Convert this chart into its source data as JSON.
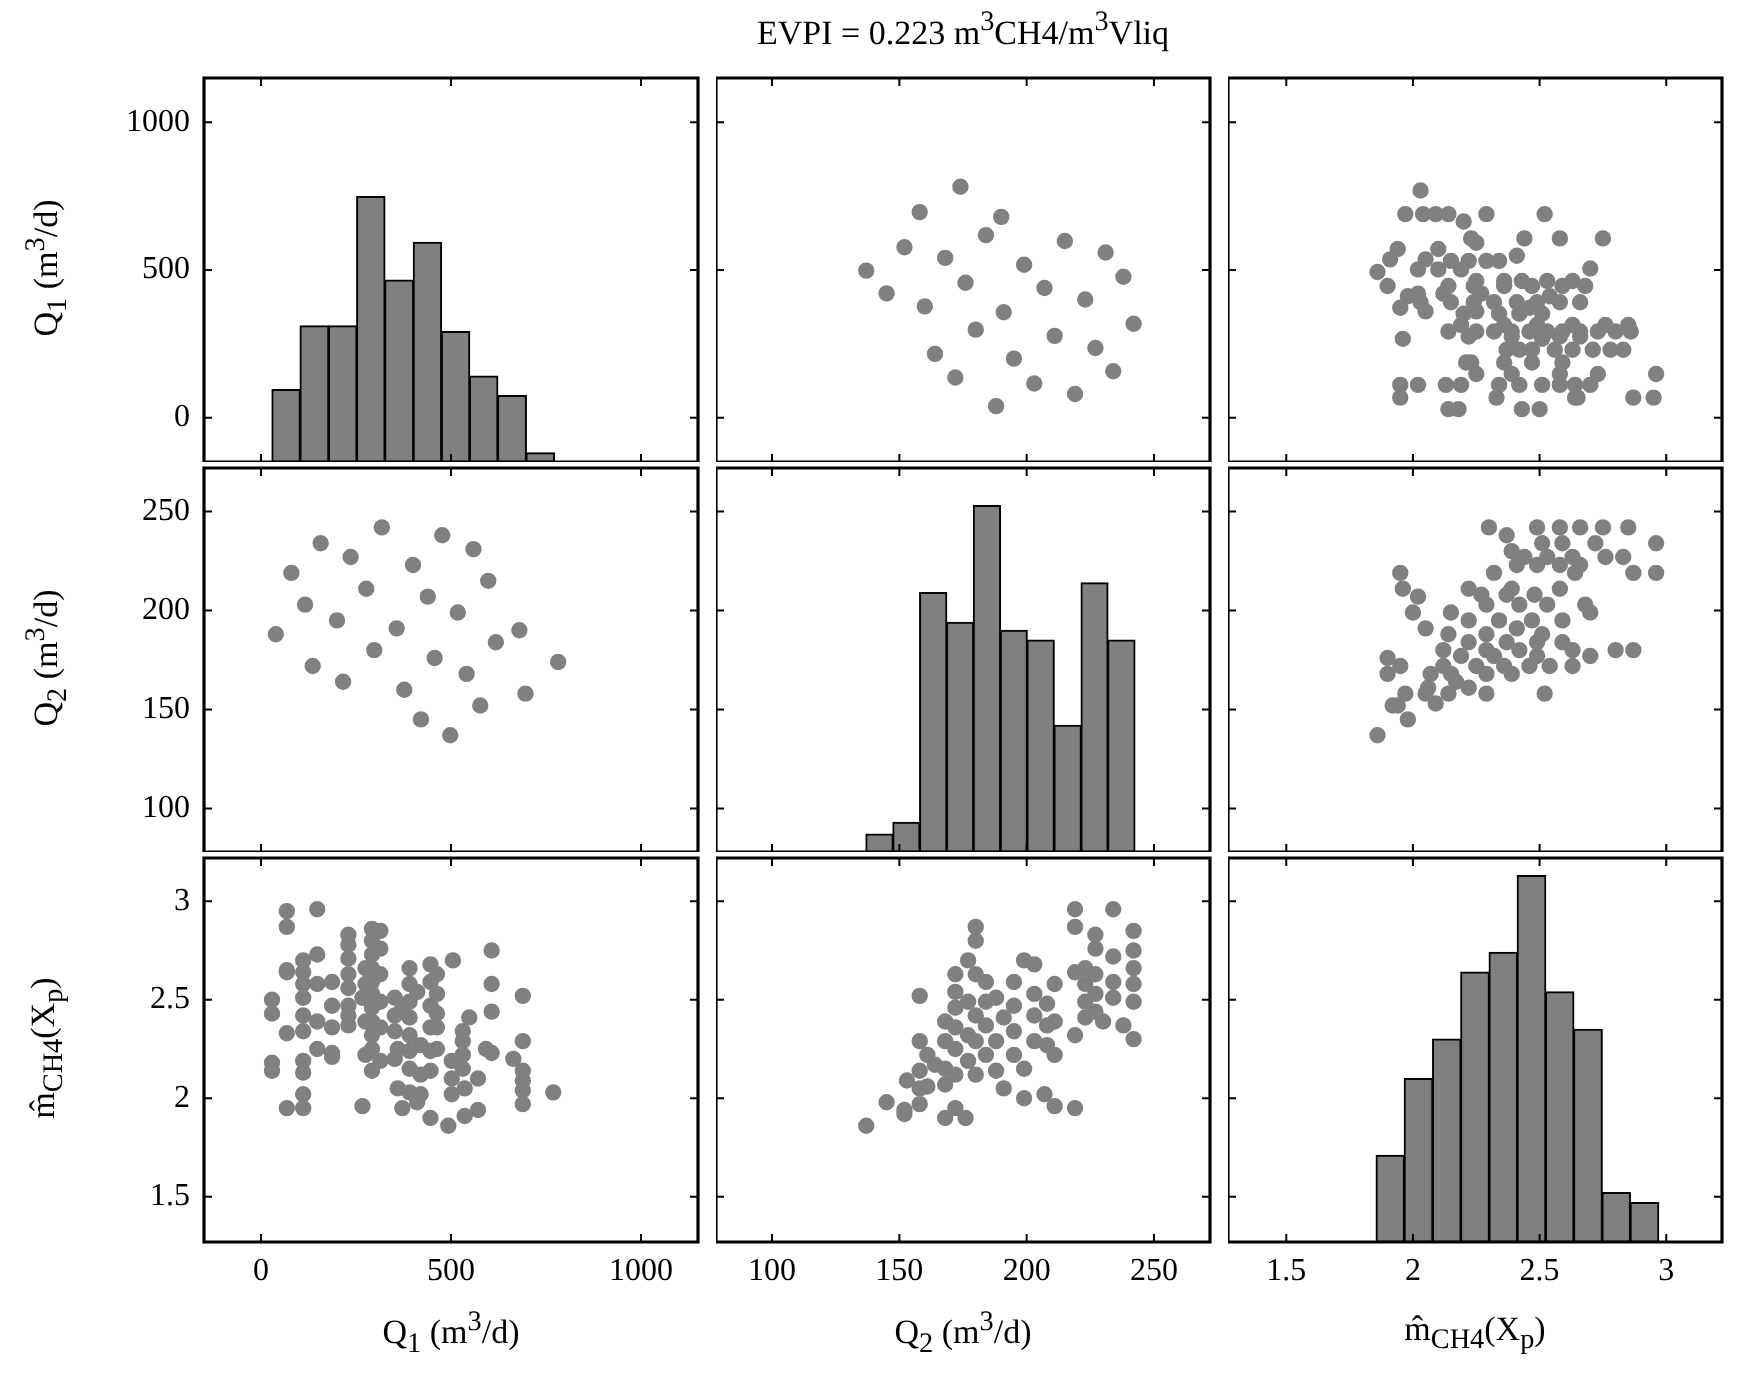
{
  "chart_data": [
    {
      "type": "histogram",
      "ylabel": "Q$_{1}$ (m$^{3}$/d)",
      "bins": [
        29,
        103,
        178,
        252,
        326,
        401,
        475,
        549,
        623,
        698,
        772
      ],
      "values": [
        245,
        461,
        461,
        898,
        616,
        743,
        441,
        291,
        225,
        31
      ],
      "base": [
        -150,
        -150,
        -150,
        -150,
        -150,
        -150,
        -150,
        -150,
        -150,
        -150
      ],
      "color": "#808080",
      "xlim": [
        -150,
        1150
      ],
      "xticks": [
        0,
        500,
        1000
      ],
      "ylim": [
        -150,
        1150
      ],
      "yticks": [
        0,
        500,
        1000
      ],
      "tick_labels": "y"
    },
    {
      "type": "scatter",
      "title": "EVPI = 0.223 m$^{3}$CH4/m$^{3}$Vliq",
      "x": [
        174,
        158,
        190,
        184,
        152,
        168,
        215,
        231,
        137,
        199,
        176,
        238,
        145,
        207,
        223,
        160,
        191,
        242,
        180,
        211,
        164,
        227,
        195,
        234,
        172,
        203,
        219,
        188
      ],
      "values": [
        782,
        696,
        680,
        618,
        577,
        541,
        598,
        559,
        498,
        518,
        457,
        477,
        421,
        439,
        400,
        377,
        357,
        318,
        298,
        277,
        216,
        236,
        200,
        157,
        136,
        116,
        80,
        39
      ],
      "color": "#808080",
      "marker": "circle",
      "xlim": [
        78,
        272
      ],
      "xticks": [
        100,
        150,
        200,
        250
      ],
      "ylim": [
        -150,
        1150
      ],
      "yticks": [
        0,
        500,
        1000
      ],
      "tick_labels": false
    },
    {
      "type": "scatter",
      "x": [
        2.5,
        2.43,
        2.18,
        2.14,
        2.95,
        2.87,
        2.65,
        2.64,
        2.33,
        1.95,
        2.7,
        2.64,
        2.58,
        2.51,
        2.42,
        2.34,
        2.19,
        2.13,
        2.02,
        1.95,
        2.96,
        2.73,
        2.58,
        2.39,
        2.25,
        2.59,
        2.47,
        2.36,
        2.23,
        2.21,
        2.83,
        2.78,
        2.71,
        2.63,
        2.56,
        2.47,
        2.42,
        2.37,
        2.51,
        1.96,
        2.66,
        2.58,
        2.39,
        2.22,
        2.86,
        2.8,
        2.73,
        2.66,
        2.59,
        2.53,
        2.46,
        2.39,
        2.32,
        2.25,
        2.14,
        2.85,
        2.76,
        2.63,
        2.49,
        2.36,
        2.19,
        2.51,
        2.42,
        2.34,
        2.2,
        2.05,
        2.25,
        1.95,
        2.46,
        2.66,
        2.58,
        2.49,
        2.41,
        2.32,
        2.24,
        2.15,
        2.03,
        1.98,
        2.54,
        2.27,
        2.12,
        2.02,
        2.68,
        2.59,
        2.47,
        2.36,
        2.24,
        2.14,
        1.9,
        2.63,
        2.53,
        2.43,
        2.36,
        2.25,
        2.19,
        2.1,
        2.02,
        2.7,
        1.86,
        2.34,
        2.29,
        2.22,
        2.15,
        2.05,
        1.91,
        2.41,
        2.1,
        1.94,
        2.25,
        2.75,
        2.58,
        2.44,
        2.23,
        2.2,
        2.52,
        2.29,
        2.14,
        2.09,
        2.04,
        1.97,
        2.03
      ],
      "values": [
        29,
        29,
        29,
        29,
        68,
        68,
        68,
        68,
        68,
        68,
        111,
        111,
        111,
        111,
        111,
        111,
        111,
        111,
        111,
        111,
        148,
        148,
        148,
        148,
        148,
        187,
        187,
        187,
        187,
        187,
        230,
        230,
        230,
        230,
        230,
        230,
        230,
        230,
        267,
        267,
        275,
        275,
        275,
        275,
        292,
        292,
        292,
        292,
        292,
        292,
        292,
        292,
        292,
        292,
        292,
        314,
        314,
        314,
        314,
        314,
        314,
        352,
        352,
        352,
        352,
        360,
        360,
        372,
        372,
        391,
        391,
        391,
        391,
        391,
        391,
        391,
        391,
        411,
        411,
        420,
        420,
        420,
        446,
        446,
        446,
        446,
        446,
        446,
        446,
        463,
        463,
        463,
        463,
        463,
        502,
        502,
        502,
        505,
        493,
        531,
        531,
        531,
        531,
        536,
        536,
        548,
        571,
        571,
        592,
        607,
        607,
        607,
        607,
        664,
        689,
        689,
        689,
        689,
        689,
        689,
        769
      ],
      "color": "#808080",
      "marker": "circle",
      "xlim": [
        1.27,
        3.22
      ],
      "xticks": [
        1.5,
        2,
        2.5,
        3
      ],
      "ylim": [
        -150,
        1150
      ],
      "yticks": [
        0,
        500,
        1000
      ],
      "tick_labels": false
    },
    {
      "type": "scatter",
      "ylabel": "Q$_{2}$ (m$^{3}$/d)",
      "x": [
        782,
        696,
        680,
        618,
        577,
        541,
        598,
        559,
        498,
        518,
        457,
        477,
        421,
        439,
        400,
        377,
        357,
        318,
        298,
        277,
        216,
        236,
        200,
        157,
        136,
        116,
        80,
        39
      ],
      "values": [
        174,
        158,
        190,
        184,
        152,
        168,
        215,
        231,
        137,
        199,
        176,
        238,
        145,
        207,
        223,
        160,
        191,
        242,
        180,
        211,
        164,
        227,
        195,
        234,
        172,
        203,
        219,
        188
      ],
      "color": "#808080",
      "marker": "circle",
      "xlim": [
        -150,
        1150
      ],
      "xticks": [
        0,
        500,
        1000
      ],
      "ylim": [
        78,
        272
      ],
      "yticks": [
        100,
        150,
        200,
        250
      ],
      "tick_labels": "y"
    },
    {
      "type": "histogram",
      "bins": [
        136.9,
        147.5,
        158.0,
        168.6,
        179.1,
        189.7,
        200.2,
        210.8,
        221.4,
        231.9,
        242.5
      ],
      "values": [
        9,
        15,
        131,
        116,
        175,
        112,
        107,
        64,
        136,
        107
      ],
      "base": [
        78,
        78,
        78,
        78,
        78,
        78,
        78,
        78,
        78,
        78
      ],
      "color": "#808080",
      "xlim": [
        78,
        272
      ],
      "xticks": [
        100,
        150,
        200,
        250
      ],
      "ylim": [
        78,
        272
      ],
      "yticks": [
        100,
        150,
        200,
        250
      ],
      "tick_labels": false
    },
    {
      "type": "scatter",
      "x": [
        1.86,
        1.98,
        1.94,
        1.92,
        2.09,
        2.52,
        2.29,
        2.14,
        2.05,
        1.97,
        2.22,
        2.06,
        2.17,
        2.39,
        2.29,
        2.15,
        2.07,
        1.9,
        2.63,
        2.54,
        2.46,
        2.36,
        2.25,
        2.12,
        1.95,
        1.9,
        2.7,
        2.49,
        2.32,
        2.19,
        2.87,
        2.8,
        2.63,
        2.42,
        2.29,
        2.12,
        2.59,
        2.49,
        2.37,
        2.22,
        2.51,
        2.29,
        2.14,
        2.41,
        2.05,
        2.59,
        2.47,
        2.34,
        2.22,
        2.7,
        2.15,
        2.0,
        2.68,
        2.53,
        2.42,
        2.29,
        2.02,
        2.48,
        2.37,
        2.27,
        2.58,
        2.39,
        2.22,
        1.96,
        2.96,
        2.87,
        2.64,
        2.32,
        1.95,
        2.66,
        2.58,
        2.49,
        2.41,
        2.83,
        2.76,
        2.63,
        2.53,
        2.44,
        2.39,
        2.96,
        2.72,
        2.59,
        2.51,
        2.37,
        2.85,
        2.75,
        2.66,
        2.58,
        2.49,
        2.3
      ],
      "values": [
        137,
        145,
        152,
        152,
        153,
        158,
        158,
        158,
        158,
        158,
        161,
        161,
        164,
        168,
        168,
        168,
        168,
        168,
        172,
        172,
        172,
        172,
        172,
        172,
        172,
        176,
        177,
        177,
        177,
        177,
        180,
        180,
        180,
        180,
        180,
        180,
        184,
        184,
        184,
        184,
        188,
        188,
        188,
        191,
        191,
        195,
        195,
        195,
        195,
        199,
        199,
        199,
        203,
        203,
        203,
        203,
        207,
        208,
        208,
        208,
        211,
        211,
        211,
        211,
        219,
        219,
        219,
        219,
        219,
        223,
        223,
        223,
        223,
        227,
        227,
        227,
        227,
        227,
        230,
        234,
        234,
        234,
        234,
        238,
        242,
        242,
        242,
        242,
        242,
        242
      ],
      "color": "#808080",
      "marker": "circle",
      "xlim": [
        1.27,
        3.22
      ],
      "xticks": [
        1.5,
        2,
        2.5,
        3
      ],
      "ylim": [
        78,
        272
      ],
      "yticks": [
        100,
        150,
        200,
        250
      ],
      "tick_labels": false
    },
    {
      "type": "scatter",
      "xlabel": "Q$_{1}$ (m$^{3}$/d)",
      "ylabel": "m̂$_{CH4}$(X$_{p}$)",
      "x": [
        29,
        29,
        29,
        29,
        68,
        68,
        68,
        68,
        68,
        68,
        111,
        111,
        111,
        111,
        111,
        111,
        111,
        111,
        111,
        111,
        148,
        148,
        148,
        148,
        148,
        187,
        187,
        187,
        187,
        187,
        230,
        230,
        230,
        230,
        230,
        230,
        230,
        230,
        267,
        267,
        275,
        275,
        275,
        275,
        292,
        292,
        292,
        292,
        292,
        292,
        292,
        292,
        292,
        292,
        292,
        314,
        314,
        314,
        314,
        314,
        314,
        352,
        352,
        352,
        352,
        360,
        360,
        372,
        372,
        391,
        391,
        391,
        391,
        391,
        391,
        391,
        391,
        411,
        411,
        420,
        420,
        420,
        446,
        446,
        446,
        446,
        446,
        446,
        446,
        463,
        463,
        463,
        463,
        463,
        502,
        502,
        502,
        505,
        493,
        531,
        531,
        531,
        531,
        536,
        536,
        548,
        571,
        571,
        592,
        607,
        607,
        607,
        607,
        664,
        689,
        689,
        689,
        689,
        689,
        689,
        769
      ],
      "values": [
        2.5,
        2.43,
        2.18,
        2.14,
        2.95,
        2.87,
        2.65,
        2.64,
        2.33,
        1.95,
        2.7,
        2.64,
        2.58,
        2.51,
        2.42,
        2.34,
        2.19,
        2.13,
        2.02,
        1.95,
        2.96,
        2.73,
        2.58,
        2.39,
        2.25,
        2.59,
        2.47,
        2.36,
        2.23,
        2.21,
        2.83,
        2.78,
        2.71,
        2.63,
        2.56,
        2.47,
        2.42,
        2.37,
        2.51,
        1.96,
        2.66,
        2.58,
        2.39,
        2.22,
        2.86,
        2.8,
        2.73,
        2.66,
        2.59,
        2.53,
        2.46,
        2.39,
        2.32,
        2.25,
        2.14,
        2.85,
        2.76,
        2.63,
        2.49,
        2.36,
        2.19,
        2.51,
        2.42,
        2.34,
        2.2,
        2.05,
        2.25,
        1.95,
        2.46,
        2.66,
        2.58,
        2.49,
        2.41,
        2.32,
        2.24,
        2.15,
        2.03,
        1.98,
        2.54,
        2.27,
        2.12,
        2.02,
        2.68,
        2.59,
        2.47,
        2.36,
        2.24,
        2.14,
        1.9,
        2.63,
        2.53,
        2.43,
        2.36,
        2.25,
        2.19,
        2.1,
        2.02,
        2.7,
        1.86,
        2.34,
        2.29,
        2.22,
        2.15,
        2.05,
        1.91,
        2.41,
        2.1,
        1.94,
        2.25,
        2.75,
        2.58,
        2.44,
        2.23,
        2.2,
        2.52,
        2.29,
        2.14,
        2.09,
        2.04,
        1.97,
        2.03
      ],
      "color": "#808080",
      "marker": "circle",
      "xlim": [
        -150,
        1150
      ],
      "xticks": [
        0,
        500,
        1000
      ],
      "ylim": [
        1.27,
        3.22
      ],
      "yticks": [
        1.5,
        2,
        2.5,
        3
      ]
    },
    {
      "type": "scatter",
      "xlabel": "Q$_{2}$ (m$^{3}$/d)",
      "x": [
        137,
        145,
        152,
        152,
        153,
        158,
        158,
        158,
        158,
        158,
        161,
        161,
        164,
        168,
        168,
        168,
        168,
        168,
        172,
        172,
        172,
        172,
        172,
        172,
        172,
        176,
        177,
        177,
        177,
        177,
        180,
        180,
        180,
        180,
        180,
        180,
        184,
        184,
        184,
        184,
        188,
        188,
        188,
        191,
        191,
        195,
        195,
        195,
        195,
        199,
        199,
        199,
        203,
        203,
        203,
        203,
        207,
        208,
        208,
        208,
        211,
        211,
        211,
        211,
        219,
        219,
        219,
        219,
        219,
        223,
        223,
        223,
        223,
        227,
        227,
        227,
        227,
        227,
        230,
        234,
        234,
        234,
        234,
        238,
        242,
        242,
        242,
        242,
        242,
        242
      ],
      "values": [
        1.86,
        1.98,
        1.94,
        1.92,
        2.09,
        2.52,
        2.29,
        2.14,
        2.05,
        1.97,
        2.22,
        2.06,
        2.17,
        2.39,
        2.29,
        2.15,
        2.07,
        1.9,
        2.63,
        2.54,
        2.46,
        2.36,
        2.25,
        2.12,
        1.95,
        1.9,
        2.7,
        2.49,
        2.32,
        2.19,
        2.87,
        2.8,
        2.63,
        2.42,
        2.29,
        2.12,
        2.59,
        2.49,
        2.37,
        2.22,
        2.51,
        2.29,
        2.14,
        2.41,
        2.05,
        2.59,
        2.47,
        2.34,
        2.22,
        2.7,
        2.15,
        2.0,
        2.68,
        2.53,
        2.42,
        2.29,
        2.02,
        2.48,
        2.37,
        2.27,
        2.58,
        2.39,
        2.22,
        1.96,
        2.96,
        2.87,
        2.64,
        2.32,
        1.95,
        2.66,
        2.58,
        2.49,
        2.41,
        2.83,
        2.76,
        2.63,
        2.53,
        2.44,
        2.39,
        2.96,
        2.72,
        2.59,
        2.51,
        2.37,
        2.85,
        2.75,
        2.66,
        2.58,
        2.49,
        2.3
      ],
      "color": "#808080",
      "marker": "circle",
      "xlim": [
        78,
        272
      ],
      "xticks": [
        100,
        150,
        200,
        250
      ],
      "ylim": [
        1.27,
        3.22
      ],
      "yticks": [
        1.5,
        2,
        2.5,
        3
      ],
      "tick_labels": "x"
    },
    {
      "type": "histogram",
      "xlabel": "m̂$_{CH4}$(X$_{p}$)",
      "bins": [
        1.855,
        1.966,
        2.078,
        2.189,
        2.301,
        2.412,
        2.524,
        2.635,
        2.747,
        2.858,
        2.97
      ],
      "values": [
        0.44,
        0.83,
        1.03,
        1.37,
        1.47,
        1.86,
        1.27,
        1.08,
        0.25,
        0.2
      ],
      "base": [
        1.27,
        1.27,
        1.27,
        1.27,
        1.27,
        1.27,
        1.27,
        1.27,
        1.27,
        1.27
      ],
      "color": "#808080",
      "xlim": [
        1.27,
        3.22
      ],
      "xticks": [
        1.5,
        2,
        2.5,
        3
      ],
      "ylim": [
        1.27,
        3.22
      ],
      "yticks": [
        1.5,
        2,
        2.5,
        3
      ],
      "tick_labels": "x"
    }
  ]
}
